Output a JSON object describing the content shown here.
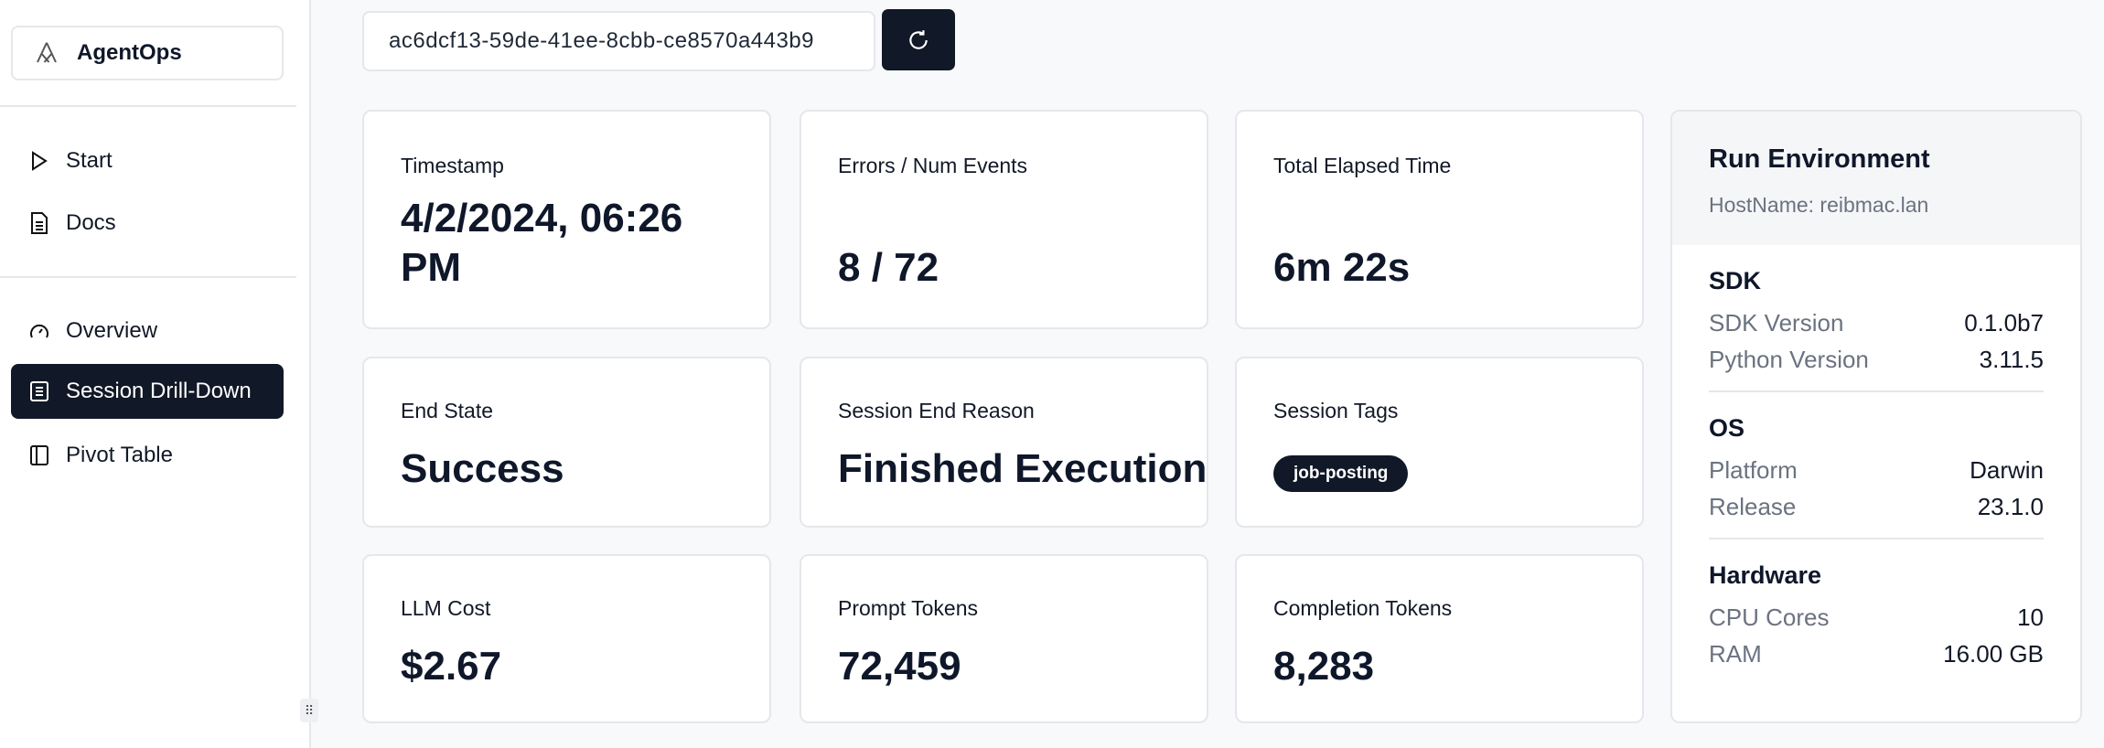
{
  "sidebar": {
    "brand": "AgentOps",
    "nav": [
      {
        "label": "Start",
        "icon": "play-icon"
      },
      {
        "label": "Docs",
        "icon": "document-icon"
      },
      {
        "label": "Overview",
        "icon": "gauge-icon"
      },
      {
        "label": "Session Drill-Down",
        "icon": "list-icon",
        "active": true
      },
      {
        "label": "Pivot Table",
        "icon": "table-icon"
      }
    ]
  },
  "session": {
    "id": "ac6dcf13-59de-41ee-8cbb-ce8570a443b9"
  },
  "cards": {
    "timestamp": {
      "label": "Timestamp",
      "value": "4/2/2024, 06:26 PM"
    },
    "errors": {
      "label": "Errors / Num Events",
      "value": "8 / 72"
    },
    "elapsed": {
      "label": "Total Elapsed Time",
      "value": "6m 22s"
    },
    "end_state": {
      "label": "End State",
      "value": "Success"
    },
    "end_reason": {
      "label": "Session End Reason",
      "value": "Finished Execution"
    },
    "tags": {
      "label": "Session Tags",
      "tag": "job-posting"
    },
    "cost": {
      "label": "LLM Cost",
      "value": "$2.67"
    },
    "prompt": {
      "label": "Prompt Tokens",
      "value": "72,459"
    },
    "completion": {
      "label": "Completion Tokens",
      "value": "8,283"
    }
  },
  "env": {
    "title": "Run Environment",
    "host": "HostName: reibmac.lan",
    "sdk": {
      "title": "SDK",
      "rows": [
        {
          "k": "SDK Version",
          "v": "0.1.0b7"
        },
        {
          "k": "Python Version",
          "v": "3.11.5"
        }
      ]
    },
    "os": {
      "title": "OS",
      "rows": [
        {
          "k": "Platform",
          "v": "Darwin"
        },
        {
          "k": "Release",
          "v": "23.1.0"
        }
      ]
    },
    "hw": {
      "title": "Hardware",
      "rows": [
        {
          "k": "CPU Cores",
          "v": "10"
        },
        {
          "k": "RAM",
          "v": "16.00 GB"
        }
      ]
    }
  },
  "colors": {
    "primary": "#111827",
    "muted": "#6b7280",
    "border": "#e5e7eb"
  }
}
